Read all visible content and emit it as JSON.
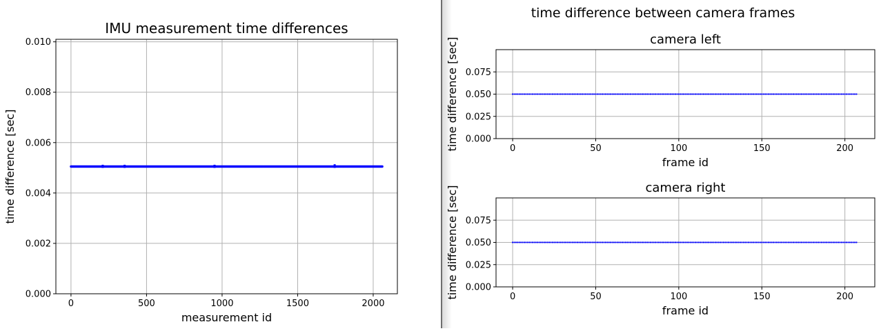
{
  "chart_data": [
    {
      "type": "scatter",
      "title": "IMU measurement time differences",
      "xlabel": "measurement id",
      "ylabel": "time difference [sec]",
      "xlim": [
        -100,
        2160
      ],
      "ylim": [
        0,
        0.0101
      ],
      "xticks": [
        0,
        500,
        1000,
        1500,
        2000
      ],
      "xtick_labels": [
        "0",
        "500",
        "1000",
        "1500",
        "2000"
      ],
      "yticks": [
        0,
        0.002,
        0.004,
        0.006,
        0.008,
        0.01
      ],
      "ytick_labels": [
        "0.000",
        "0.002",
        "0.004",
        "0.006",
        "0.008",
        "0.010"
      ],
      "grid": true,
      "series": [
        {
          "color": "#0000ff",
          "x_range": [
            0,
            2060
          ],
          "x_step": 5,
          "y_value": 0.00505,
          "outliers": [
            {
              "x": 210,
              "y": 0.00512
            },
            {
              "x": 355,
              "y": 0.00512
            },
            {
              "x": 950,
              "y": 0.00512
            },
            {
              "x": 1745,
              "y": 0.00514
            }
          ]
        }
      ]
    },
    {
      "type": "scatter",
      "title": "camera left",
      "xlabel": "frame id",
      "ylabel": "time difference [sec]",
      "xlim": [
        -10,
        218
      ],
      "ylim": [
        0,
        0.1
      ],
      "xticks": [
        0,
        50,
        100,
        150,
        200
      ],
      "xtick_labels": [
        "0",
        "50",
        "100",
        "150",
        "200"
      ],
      "yticks": [
        0,
        0.025,
        0.05,
        0.075
      ],
      "ytick_labels": [
        "0.000",
        "0.025",
        "0.050",
        "0.075"
      ],
      "grid": true,
      "series": [
        {
          "color": "#0000ff",
          "x_range": [
            0,
            207
          ],
          "x_step": 1,
          "y_value": 0.05
        }
      ]
    },
    {
      "type": "scatter",
      "title": "camera right",
      "xlabel": "frame id",
      "ylabel": "time difference [sec]",
      "xlim": [
        -10,
        218
      ],
      "ylim": [
        0,
        0.1
      ],
      "xticks": [
        0,
        50,
        100,
        150,
        200
      ],
      "xtick_labels": [
        "0",
        "50",
        "100",
        "150",
        "200"
      ],
      "yticks": [
        0,
        0.025,
        0.05,
        0.075
      ],
      "ytick_labels": [
        "0.000",
        "0.025",
        "0.050",
        "0.075"
      ],
      "grid": true,
      "series": [
        {
          "color": "#0000ff",
          "x_range": [
            0,
            207
          ],
          "x_step": 1,
          "y_value": 0.05
        }
      ]
    }
  ],
  "right_figure": {
    "suptitle": "time difference between camera frames"
  }
}
